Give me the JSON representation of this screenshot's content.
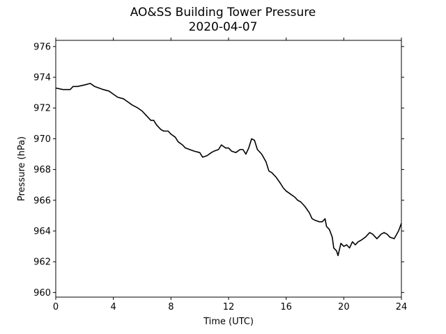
{
  "chart_data": {
    "type": "line",
    "title": "AO&SS Building Tower Pressure",
    "subtitle": "2020-04-07",
    "xlabel": "Time (UTC)",
    "ylabel": "Pressure (hPa)",
    "xlim": [
      0,
      24
    ],
    "ylim": [
      959.7,
      976.4
    ],
    "xticks": [
      0,
      4,
      8,
      12,
      16,
      20,
      24
    ],
    "yticks": [
      960,
      962,
      964,
      966,
      968,
      970,
      972,
      974,
      976
    ],
    "grid": false,
    "line_color": "#000000",
    "series": [
      {
        "x": [
          0.0,
          0.5,
          1.0,
          1.2,
          1.5,
          2.0,
          2.4,
          2.7,
          3.0,
          3.3,
          3.7,
          4.0,
          4.3,
          4.7,
          5.0,
          5.3,
          5.7,
          6.0,
          6.3,
          6.6,
          6.8,
          7.0,
          7.3,
          7.5,
          7.8,
          8.0,
          8.3,
          8.5,
          8.8,
          9.0,
          9.3,
          9.6,
          10.0,
          10.2,
          10.5,
          10.8,
          11.0,
          11.3,
          11.5,
          11.8,
          12.0,
          12.2,
          12.5,
          12.8,
          13.0,
          13.2,
          13.4,
          13.6,
          13.8,
          14.0,
          14.3,
          14.6,
          14.8,
          15.0,
          15.3,
          15.6,
          15.8,
          16.0,
          16.3,
          16.6,
          16.8,
          17.0,
          17.3,
          17.6,
          17.8,
          18.0,
          18.3,
          18.5,
          18.7,
          18.8,
          19.0,
          19.2,
          19.3,
          19.5,
          19.6,
          19.8,
          20.0,
          20.2,
          20.4,
          20.6,
          20.8,
          21.0,
          21.2,
          21.5,
          21.8,
          22.0,
          22.3,
          22.6,
          22.8,
          23.0,
          23.2,
          23.5,
          23.8,
          24.0
        ],
        "y": [
          973.3,
          973.2,
          973.2,
          973.4,
          973.4,
          973.5,
          973.6,
          973.4,
          973.3,
          973.2,
          973.1,
          972.9,
          972.7,
          972.6,
          972.4,
          972.2,
          972.0,
          971.8,
          971.5,
          971.2,
          971.2,
          970.9,
          970.6,
          970.5,
          970.5,
          970.3,
          970.1,
          969.8,
          969.6,
          969.4,
          969.3,
          969.2,
          969.1,
          968.8,
          968.9,
          969.1,
          969.2,
          969.3,
          969.6,
          969.4,
          969.4,
          969.2,
          969.1,
          969.3,
          969.3,
          969.0,
          969.4,
          970.0,
          969.9,
          969.3,
          969.0,
          968.5,
          967.9,
          967.8,
          967.5,
          967.1,
          966.8,
          966.6,
          966.4,
          966.2,
          966.0,
          965.9,
          965.6,
          965.2,
          964.8,
          964.7,
          964.6,
          964.6,
          964.8,
          964.3,
          964.1,
          963.6,
          962.9,
          962.7,
          962.4,
          963.2,
          963.0,
          963.1,
          962.9,
          963.3,
          963.1,
          963.3,
          963.4,
          963.6,
          963.9,
          963.8,
          963.5,
          963.8,
          963.9,
          963.8,
          963.6,
          963.5,
          964.0,
          964.5
        ]
      }
    ]
  }
}
